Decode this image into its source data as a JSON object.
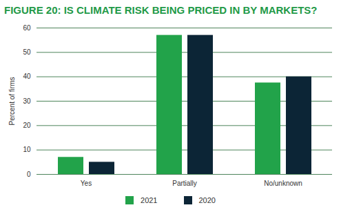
{
  "chart_data": {
    "type": "bar",
    "title": "FIGURE 20: IS CLIMATE RISK BEING PRICED IN BY MARKETS?",
    "y_label": "Percent of firms",
    "categories": [
      "Yes",
      "Partially",
      "No/unknown"
    ],
    "series": [
      {
        "name": "2021",
        "color": "#22a34a",
        "values": [
          7,
          57,
          37.5
        ]
      },
      {
        "name": "2020",
        "color": "#0c2536",
        "values": [
          5,
          57,
          40
        ]
      }
    ],
    "ylim": [
      0,
      60
    ],
    "yticks": [
      0,
      10,
      20,
      30,
      40,
      50,
      60
    ],
    "grid": true,
    "legend": "bottom"
  }
}
